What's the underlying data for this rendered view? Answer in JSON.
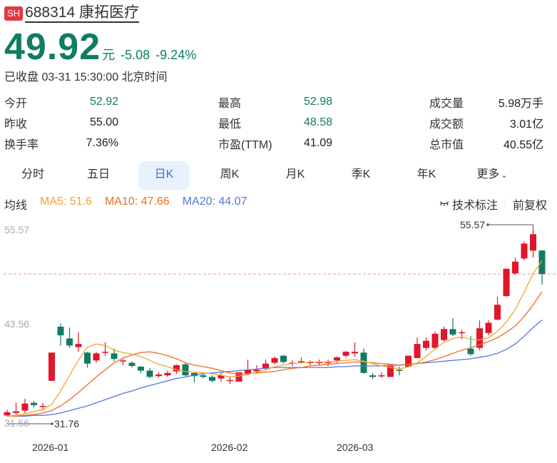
{
  "header": {
    "market_tag": "SH",
    "code_name": "688314 康拓医疗"
  },
  "quote": {
    "price": "49.92",
    "unit": "元",
    "change": "-5.08",
    "change_pct": "-9.24%",
    "status": "已收盘 03-31 15:30:00 北京时间"
  },
  "stats": {
    "rows": [
      [
        {
          "label": "今开",
          "value": "52.92"
        },
        {
          "label": "最高",
          "value": "52.98"
        },
        {
          "label": "成交量",
          "value": "5.98万手"
        }
      ],
      [
        {
          "label": "昨收",
          "value": "55.00"
        },
        {
          "label": "最低",
          "value": "48.58"
        },
        {
          "label": "成交额",
          "value": "3.01亿"
        }
      ],
      [
        {
          "label": "换手率",
          "value": "7.36%"
        },
        {
          "label": "市盈(TTM)",
          "value": "41.09"
        },
        {
          "label": "总市值",
          "value": "40.55亿"
        }
      ]
    ]
  },
  "tabs": [
    "分时",
    "五日",
    "日K",
    "周K",
    "月K",
    "季K",
    "年K",
    "更多"
  ],
  "active_tab": "日K",
  "ma": {
    "label": "均线",
    "ma5": "MA5: 51.6",
    "ma10": "MA10: 47.66",
    "ma20": "MA20: 44.07"
  },
  "tools": {
    "tech_mark": "技术标注",
    "adjust": "前复权"
  },
  "colors": {
    "up": "#e0162b",
    "down": "#0f7c63",
    "ma5": "#f2a531",
    "ma10": "#ed6d26",
    "ma20": "#5477e0",
    "active_tab_bg": "#e8f1fd",
    "active_tab_text": "#3b6fd6",
    "tag_bg": "#e8363e"
  },
  "chart_data": {
    "type": "candlestick",
    "y_tick_labels": [
      "55.57",
      "43.56",
      "31.56"
    ],
    "x_tick_labels": [
      "2026-01",
      "2026-02",
      "2026-03"
    ],
    "max_marker": "55.57",
    "min_marker": "31.76",
    "last_close_line": 49.92,
    "candles": [
      {
        "o": 31.9,
        "c": 32.3,
        "h": 32.6,
        "l": 31.76
      },
      {
        "o": 32.2,
        "c": 32.4,
        "h": 33.5,
        "l": 32.0
      },
      {
        "o": 32.5,
        "c": 33.4,
        "h": 34.0,
        "l": 32.2
      },
      {
        "o": 33.5,
        "c": 33.2,
        "h": 33.7,
        "l": 32.9
      },
      {
        "o": 33.0,
        "c": 33.1,
        "h": 33.5,
        "l": 32.6
      },
      {
        "o": 36.3,
        "c": 39.9,
        "h": 39.9,
        "l": 36.3
      },
      {
        "o": 43.2,
        "c": 42.1,
        "h": 43.6,
        "l": 40.8
      },
      {
        "o": 41.7,
        "c": 40.8,
        "h": 43.1,
        "l": 40.5
      },
      {
        "o": 40.6,
        "c": 41.0,
        "h": 42.5,
        "l": 40.0
      },
      {
        "o": 39.9,
        "c": 38.5,
        "h": 40.0,
        "l": 38.0
      },
      {
        "o": 38.9,
        "c": 39.8,
        "h": 40.0,
        "l": 38.6
      },
      {
        "o": 39.9,
        "c": 40.0,
        "h": 41.2,
        "l": 39.5
      },
      {
        "o": 39.8,
        "c": 39.1,
        "h": 40.4,
        "l": 38.8
      },
      {
        "o": 38.8,
        "c": 38.9,
        "h": 39.1,
        "l": 38.3
      },
      {
        "o": 38.6,
        "c": 38.2,
        "h": 38.8,
        "l": 38.0
      },
      {
        "o": 38.1,
        "c": 37.6,
        "h": 38.2,
        "l": 37.3
      },
      {
        "o": 37.6,
        "c": 36.8,
        "h": 37.9,
        "l": 36.6
      },
      {
        "o": 36.9,
        "c": 37.1,
        "h": 37.4,
        "l": 36.7
      },
      {
        "o": 37.0,
        "c": 37.3,
        "h": 37.6,
        "l": 36.8
      },
      {
        "o": 37.5,
        "c": 38.3,
        "h": 38.4,
        "l": 37.2
      },
      {
        "o": 38.4,
        "c": 37.0,
        "h": 38.6,
        "l": 36.9
      },
      {
        "o": 37.3,
        "c": 36.9,
        "h": 37.4,
        "l": 36.1
      },
      {
        "o": 37.0,
        "c": 36.8,
        "h": 37.2,
        "l": 36.6
      },
      {
        "o": 36.8,
        "c": 36.3,
        "h": 37.0,
        "l": 36.1
      },
      {
        "o": 36.6,
        "c": 37.0,
        "h": 37.3,
        "l": 36.2
      },
      {
        "o": 36.3,
        "c": 36.4,
        "h": 36.8,
        "l": 35.9
      },
      {
        "o": 36.2,
        "c": 37.4,
        "h": 37.4,
        "l": 36.2
      },
      {
        "o": 37.2,
        "c": 37.7,
        "h": 39.0,
        "l": 37.0
      },
      {
        "o": 37.5,
        "c": 37.7,
        "h": 38.3,
        "l": 37.2
      },
      {
        "o": 37.9,
        "c": 38.5,
        "h": 39.0,
        "l": 37.6
      },
      {
        "o": 38.6,
        "c": 39.2,
        "h": 39.4,
        "l": 38.4
      },
      {
        "o": 39.5,
        "c": 38.7,
        "h": 39.6,
        "l": 38.5
      },
      {
        "o": 38.5,
        "c": 38.6,
        "h": 38.9,
        "l": 38.2
      },
      {
        "o": 38.7,
        "c": 38.8,
        "h": 39.3,
        "l": 38.5
      },
      {
        "o": 38.6,
        "c": 38.7,
        "h": 38.9,
        "l": 38.3
      },
      {
        "o": 38.6,
        "c": 38.7,
        "h": 39.0,
        "l": 38.3
      },
      {
        "o": 38.6,
        "c": 38.7,
        "h": 39.0,
        "l": 38.2
      },
      {
        "o": 38.9,
        "c": 39.3,
        "h": 39.4,
        "l": 38.6
      },
      {
        "o": 39.5,
        "c": 40.0,
        "h": 40.1,
        "l": 39.3
      },
      {
        "o": 39.8,
        "c": 40.0,
        "h": 41.2,
        "l": 39.4
      },
      {
        "o": 39.9,
        "c": 37.3,
        "h": 40.4,
        "l": 37.2
      },
      {
        "o": 37.0,
        "c": 36.8,
        "h": 37.3,
        "l": 36.5
      },
      {
        "o": 36.9,
        "c": 37.0,
        "h": 37.4,
        "l": 36.7
      },
      {
        "o": 36.8,
        "c": 38.2,
        "h": 38.2,
        "l": 36.8
      },
      {
        "o": 37.7,
        "c": 37.6,
        "h": 38.1,
        "l": 37.0
      },
      {
        "o": 38.1,
        "c": 39.5,
        "h": 39.5,
        "l": 38.0
      },
      {
        "o": 39.2,
        "c": 41.0,
        "h": 41.8,
        "l": 39.2
      },
      {
        "o": 40.5,
        "c": 41.4,
        "h": 41.8,
        "l": 40.2
      },
      {
        "o": 40.5,
        "c": 42.3,
        "h": 42.6,
        "l": 40.3
      },
      {
        "o": 41.5,
        "c": 42.9,
        "h": 43.2,
        "l": 41.3
      },
      {
        "o": 42.9,
        "c": 42.2,
        "h": 44.3,
        "l": 42.0
      },
      {
        "o": 42.5,
        "c": 42.5,
        "h": 42.8,
        "l": 41.6
      },
      {
        "o": 40.4,
        "c": 39.7,
        "h": 42.0,
        "l": 39.5
      },
      {
        "o": 40.5,
        "c": 43.0,
        "h": 44.0,
        "l": 40.2
      },
      {
        "o": 42.4,
        "c": 43.7,
        "h": 44.0,
        "l": 42.1
      },
      {
        "o": 44.1,
        "c": 46.0,
        "h": 47.0,
        "l": 44.0
      },
      {
        "o": 47.1,
        "c": 50.6,
        "h": 50.6,
        "l": 47.0
      },
      {
        "o": 50.0,
        "c": 51.5,
        "h": 52.0,
        "l": 49.8
      },
      {
        "o": 51.9,
        "c": 53.8,
        "h": 54.1,
        "l": 51.7
      },
      {
        "o": 52.9,
        "c": 55.0,
        "h": 55.57,
        "l": 52.0
      },
      {
        "o": 52.92,
        "c": 49.92,
        "h": 52.98,
        "l": 48.58
      }
    ],
    "ma5": [
      31.8,
      31.9,
      32.1,
      32.4,
      32.6,
      33.3,
      35.0,
      37.0,
      38.9,
      40.6,
      41.0,
      40.8,
      40.2,
      39.9,
      39.7,
      39.4,
      38.9,
      38.4,
      38.1,
      37.7,
      37.5,
      37.4,
      37.3,
      37.2,
      37.0,
      36.8,
      36.9,
      37.1,
      37.4,
      37.7,
      38.1,
      38.3,
      38.5,
      38.6,
      38.7,
      38.7,
      38.7,
      38.8,
      38.9,
      39.0,
      38.8,
      38.5,
      38.2,
      38.0,
      37.8,
      38.1,
      38.6,
      39.4,
      40.4,
      41.2,
      41.7,
      41.9,
      41.6,
      41.5,
      41.8,
      42.6,
      43.8,
      45.4,
      47.6,
      50.0,
      51.6
    ],
    "ma10": [
      31.8,
      31.8,
      31.9,
      32.0,
      32.2,
      32.5,
      33.1,
      33.9,
      34.8,
      35.8,
      36.8,
      37.7,
      38.6,
      39.2,
      39.6,
      39.9,
      40.0,
      39.8,
      39.5,
      39.1,
      38.6,
      38.3,
      38.1,
      37.9,
      37.6,
      37.3,
      37.2,
      37.2,
      37.3,
      37.4,
      37.5,
      37.7,
      37.9,
      38.0,
      38.2,
      38.3,
      38.4,
      38.5,
      38.6,
      38.7,
      38.7,
      38.6,
      38.5,
      38.4,
      38.3,
      38.4,
      38.5,
      38.7,
      39.0,
      39.4,
      39.8,
      40.2,
      40.5,
      40.9,
      41.3,
      41.8,
      42.5,
      43.3,
      44.5,
      46.0,
      47.66
    ],
    "ma20": [
      31.8,
      31.8,
      31.8,
      31.9,
      31.9,
      32.0,
      32.2,
      32.5,
      32.8,
      33.1,
      33.5,
      33.9,
      34.3,
      34.7,
      35.0,
      35.4,
      35.7,
      36.0,
      36.3,
      36.6,
      36.8,
      37.0,
      37.2,
      37.3,
      37.4,
      37.5,
      37.6,
      37.7,
      37.8,
      37.9,
      38.0,
      38.0,
      38.0,
      38.0,
      38.0,
      38.0,
      38.0,
      38.1,
      38.1,
      38.2,
      38.2,
      38.2,
      38.2,
      38.3,
      38.3,
      38.4,
      38.5,
      38.6,
      38.7,
      38.8,
      38.9,
      39.0,
      39.1,
      39.3,
      39.5,
      39.8,
      40.3,
      41.0,
      42.0,
      43.1,
      44.07
    ]
  }
}
